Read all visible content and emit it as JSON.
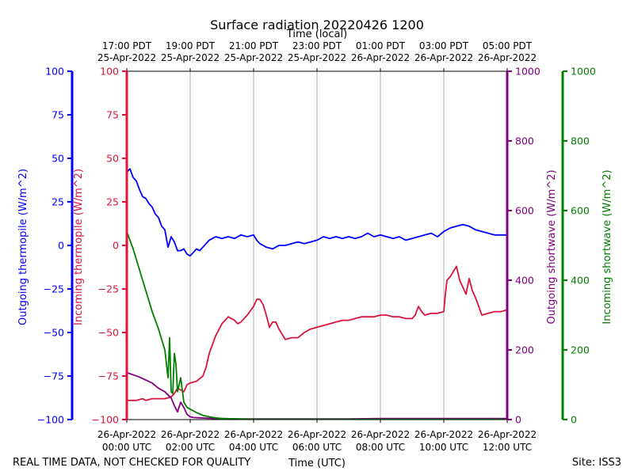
{
  "chart_data": {
    "type": "line",
    "title": "Surface radiation 20220426 1200",
    "top_axis_label": "Time (local)",
    "bottom_axis_label": "Time (UTC)",
    "footer_left": "REAL TIME DATA, NOT CHECKED FOR QUALITY",
    "footer_right": "Site: ISS3",
    "x_range_hours_utc": [
      0,
      12
    ],
    "bottom_ticks": [
      {
        "hour": 0,
        "line1": "26-Apr-2022",
        "line2": "00:00 UTC"
      },
      {
        "hour": 2,
        "line1": "26-Apr-2022",
        "line2": "02:00 UTC"
      },
      {
        "hour": 4,
        "line1": "26-Apr-2022",
        "line2": "04:00 UTC"
      },
      {
        "hour": 6,
        "line1": "26-Apr-2022",
        "line2": "06:00 UTC"
      },
      {
        "hour": 8,
        "line1": "26-Apr-2022",
        "line2": "08:00 UTC"
      },
      {
        "hour": 10,
        "line1": "26-Apr-2022",
        "line2": "10:00 UTC"
      },
      {
        "hour": 12,
        "line1": "26-Apr-2022",
        "line2": "12:00 UTC"
      }
    ],
    "top_ticks": [
      {
        "hour": 0,
        "line1": "17:00 PDT",
        "line2": "25-Apr-2022"
      },
      {
        "hour": 2,
        "line1": "19:00 PDT",
        "line2": "25-Apr-2022"
      },
      {
        "hour": 4,
        "line1": "21:00 PDT",
        "line2": "25-Apr-2022"
      },
      {
        "hour": 6,
        "line1": "23:00 PDT",
        "line2": "25-Apr-2022"
      },
      {
        "hour": 8,
        "line1": "01:00 PDT",
        "line2": "26-Apr-2022"
      },
      {
        "hour": 10,
        "line1": "03:00 PDT",
        "line2": "26-Apr-2022"
      },
      {
        "hour": 12,
        "line1": "05:00 PDT",
        "line2": "26-Apr-2022"
      }
    ],
    "axes": {
      "outgoing_thermopile": {
        "label": "Outgoing thermopile (W/m^2)",
        "color": "#0000ff",
        "ylim": [
          -100,
          100
        ],
        "ticks": [
          "100",
          "75",
          "50",
          "25",
          "0",
          "−25",
          "−50",
          "−75",
          "−100"
        ],
        "tick_values": [
          100,
          75,
          50,
          25,
          0,
          -25,
          -50,
          -75,
          -100
        ]
      },
      "incoming_thermopile": {
        "label": "Incoming thermopile (W/m^2)",
        "color": "#dc143c",
        "ylim": [
          -100,
          100
        ],
        "ticks": [
          "100",
          "75",
          "50",
          "25",
          "0",
          "−25",
          "−50",
          "−75",
          "−100"
        ],
        "tick_values": [
          100,
          75,
          50,
          25,
          0,
          -25,
          -50,
          -75,
          -100
        ]
      },
      "outgoing_shortwave": {
        "label": "Outgoing shortwave (W/m^2)",
        "color": "#800080",
        "ylim": [
          0,
          1000
        ],
        "ticks": [
          "0",
          "200",
          "400",
          "600",
          "800",
          "1000"
        ],
        "tick_values": [
          0,
          200,
          400,
          600,
          800,
          1000
        ]
      },
      "incoming_shortwave": {
        "label": "Incoming shortwave (W/m^2)",
        "color": "#008000",
        "ylim": [
          0,
          1000
        ],
        "ticks": [
          "0",
          "200",
          "400",
          "600",
          "800",
          "1000"
        ],
        "tick_values": [
          0,
          200,
          400,
          600,
          800,
          1000
        ]
      }
    },
    "series": [
      {
        "name": "Outgoing thermopile",
        "axis": "outgoing_thermopile",
        "color": "#0000ff",
        "x": [
          0,
          0.1,
          0.2,
          0.3,
          0.4,
          0.5,
          0.6,
          0.7,
          0.8,
          0.9,
          1.0,
          1.1,
          1.2,
          1.3,
          1.4,
          1.5,
          1.6,
          1.7,
          1.8,
          1.9,
          2.0,
          2.1,
          2.2,
          2.3,
          2.4,
          2.5,
          2.6,
          2.7,
          2.8,
          3.0,
          3.2,
          3.4,
          3.6,
          3.8,
          4.0,
          4.1,
          4.2,
          4.3,
          4.4,
          4.6,
          4.8,
          5.0,
          5.2,
          5.4,
          5.6,
          5.8,
          6.0,
          6.2,
          6.4,
          6.6,
          6.8,
          7.0,
          7.2,
          7.4,
          7.6,
          7.8,
          8.0,
          8.2,
          8.4,
          8.6,
          8.8,
          9.0,
          9.2,
          9.4,
          9.6,
          9.8,
          10.0,
          10.2,
          10.4,
          10.6,
          10.8,
          11.0,
          11.2,
          11.4,
          11.6,
          11.8,
          12.0
        ],
        "y": [
          42,
          44,
          39,
          37,
          32,
          28,
          27,
          24,
          22,
          18,
          16,
          11,
          9,
          -1,
          5,
          2,
          -3,
          -3,
          -2,
          -5,
          -6,
          -4,
          -2,
          -3,
          -1,
          1,
          3,
          4,
          5,
          4,
          5,
          4,
          6,
          5,
          6,
          3,
          1,
          0,
          -1,
          -2,
          0,
          0,
          1,
          2,
          1,
          2,
          3,
          5,
          4,
          5,
          4,
          5,
          4,
          5,
          7,
          5,
          6,
          5,
          4,
          5,
          3,
          4,
          5,
          6,
          7,
          5,
          8,
          10,
          11,
          12,
          11,
          9,
          8,
          7,
          6,
          6,
          6
        ]
      },
      {
        "name": "Incoming thermopile",
        "axis": "incoming_thermopile",
        "color": "#dc143c",
        "x": [
          0,
          0.3,
          0.5,
          0.6,
          0.8,
          1.0,
          1.2,
          1.4,
          1.5,
          1.6,
          1.7,
          1.8,
          1.9,
          2.0,
          2.2,
          2.4,
          2.5,
          2.6,
          2.8,
          3.0,
          3.2,
          3.4,
          3.5,
          3.6,
          3.8,
          4.0,
          4.1,
          4.2,
          4.3,
          4.4,
          4.5,
          4.6,
          4.7,
          4.8,
          5.0,
          5.2,
          5.4,
          5.6,
          5.8,
          6.0,
          6.2,
          6.4,
          6.6,
          6.8,
          7.0,
          7.2,
          7.4,
          7.6,
          7.8,
          8.0,
          8.2,
          8.4,
          8.6,
          8.8,
          9.0,
          9.1,
          9.2,
          9.3,
          9.4,
          9.6,
          9.8,
          10.0,
          10.05,
          10.1,
          10.2,
          10.3,
          10.4,
          10.5,
          10.6,
          10.7,
          10.8,
          10.9,
          11.0,
          11.2,
          11.4,
          11.6,
          11.8,
          12.0
        ],
        "y": [
          -89,
          -89,
          -88,
          -89,
          -88,
          -88,
          -88,
          -87,
          -85,
          -82,
          -83,
          -84,
          -80,
          -79,
          -78,
          -75,
          -70,
          -62,
          -52,
          -45,
          -41,
          -43,
          -45,
          -44,
          -40,
          -35,
          -31,
          -31,
          -34,
          -40,
          -47,
          -44,
          -44,
          -48,
          -54,
          -53,
          -53,
          -50,
          -48,
          -47,
          -46,
          -45,
          -44,
          -43,
          -43,
          -42,
          -41,
          -41,
          -41,
          -40,
          -40,
          -41,
          -41,
          -42,
          -42,
          -40,
          -35,
          -38,
          -40,
          -39,
          -39,
          -38,
          -28,
          -20,
          -18,
          -15,
          -12,
          -20,
          -24,
          -28,
          -19,
          -26,
          -30,
          -40,
          -39,
          -38,
          -38,
          -37
        ]
      },
      {
        "name": "Outgoing shortwave",
        "axis": "outgoing_shortwave",
        "color": "#800080",
        "x": [
          0,
          0.4,
          0.8,
          1.0,
          1.2,
          1.4,
          1.5,
          1.6,
          1.7,
          1.8,
          1.9,
          2.0,
          2.1,
          2.3,
          2.5,
          2.8,
          3.0,
          3.5,
          4.0,
          4.5,
          5.0,
          6.0,
          7.0,
          8.0,
          9.0,
          10.0,
          11.0,
          12.0
        ],
        "y": [
          135,
          122,
          105,
          90,
          80,
          62,
          40,
          22,
          50,
          35,
          15,
          8,
          6,
          5,
          4,
          3,
          3,
          2,
          2,
          2,
          2,
          2,
          2,
          3,
          3,
          3,
          3,
          3
        ]
      },
      {
        "name": "Incoming shortwave",
        "axis": "incoming_shortwave",
        "color": "#008000",
        "x": [
          0,
          0.2,
          0.4,
          0.6,
          0.8,
          1.0,
          1.2,
          1.3,
          1.35,
          1.4,
          1.45,
          1.5,
          1.55,
          1.6,
          1.7,
          1.8,
          1.9,
          2.0,
          2.2,
          2.4,
          2.6,
          2.8,
          3.0,
          3.5,
          4.0,
          5.0,
          6.0,
          7.0,
          8.0,
          9.0,
          10.0,
          11.0,
          12.0
        ],
        "y": [
          540,
          490,
          430,
          370,
          310,
          260,
          200,
          120,
          235,
          80,
          75,
          190,
          160,
          80,
          120,
          50,
          35,
          30,
          20,
          12,
          8,
          5,
          3,
          2,
          1,
          1,
          1,
          1,
          1,
          1,
          1,
          1,
          1
        ]
      }
    ]
  }
}
